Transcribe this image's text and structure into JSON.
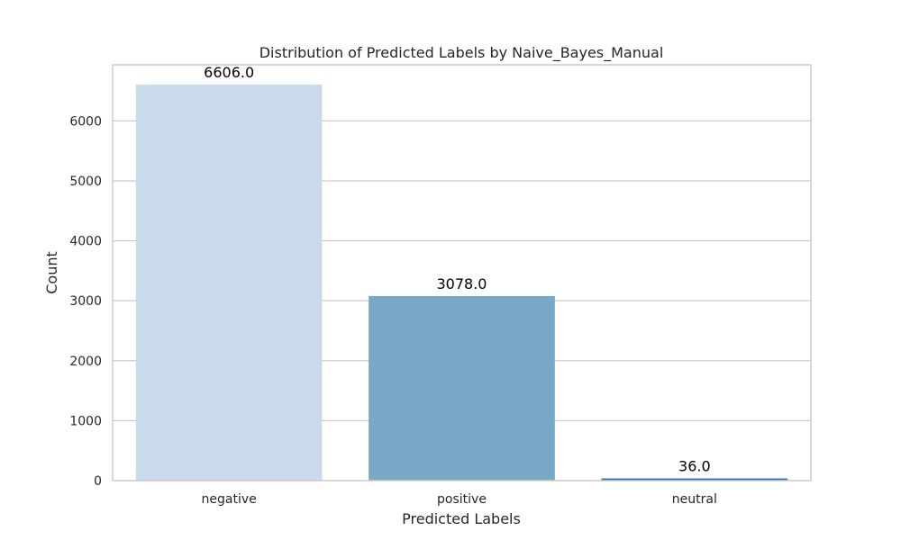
{
  "chart_data": {
    "type": "bar",
    "title": "Distribution of Predicted Labels by Naive_Bayes_Manual",
    "xlabel": "Predicted Labels",
    "ylabel": "Count",
    "categories": [
      "negative",
      "positive",
      "neutral"
    ],
    "values": [
      6606,
      3078,
      36
    ],
    "value_labels": [
      "6606.0",
      "3078.0",
      "36.0"
    ],
    "ylim": [
      0,
      6936
    ],
    "yticks": [
      0,
      1000,
      2000,
      3000,
      4000,
      5000,
      6000
    ],
    "ytick_labels": [
      "0",
      "1000",
      "2000",
      "3000",
      "4000",
      "5000",
      "6000"
    ],
    "grid": "y",
    "colors": [
      "#c9dbeb",
      "#78aac8",
      "#2a6fb0"
    ]
  }
}
